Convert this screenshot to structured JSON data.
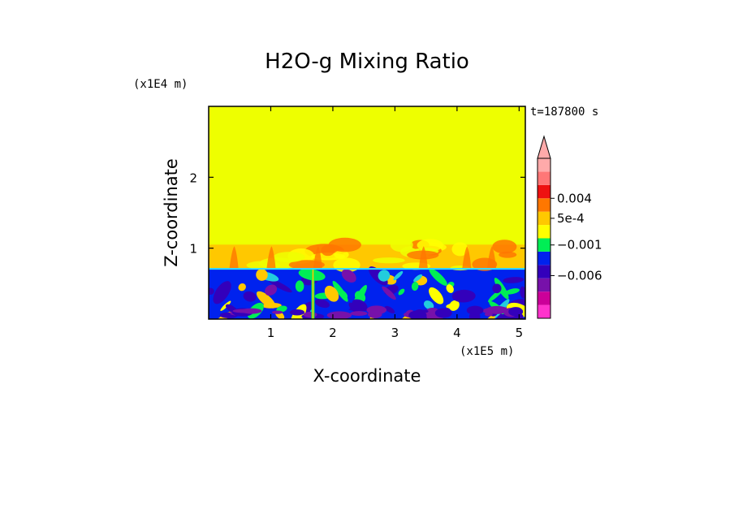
{
  "chart_data": {
    "type": "heatmap",
    "title": "H2O-g Mixing Ratio",
    "xlabel": "X-coordinate",
    "ylabel": "Z-coordinate",
    "x_unit": "(x1E5 m)",
    "y_unit": "(x1E4 m)",
    "time_label": "t=187800 s",
    "xlim": [
      0,
      5.1
    ],
    "ylim": [
      0,
      3.0
    ],
    "x_ticks": [
      1,
      2,
      3,
      4,
      5
    ],
    "x_tick_labels": [
      "1",
      "2",
      "3",
      "4",
      "5"
    ],
    "y_ticks": [
      1,
      2
    ],
    "y_tick_labels": [
      "1",
      "2"
    ],
    "regions": [
      {
        "name": "upper-layer",
        "z_range": [
          1.05,
          3.0
        ],
        "level": "above 5e-4",
        "color": "#eeff00"
      },
      {
        "name": "transition-layer",
        "z_range": [
          0.72,
          1.05
        ],
        "level": "0.001-0.004",
        "color": "#ffc800"
      },
      {
        "name": "lower-layer",
        "z_range": [
          0.0,
          0.72
        ],
        "level": "-0.006 to -0.001",
        "color": "#0022ee"
      }
    ],
    "colorbar": {
      "colors": [
        "#ff33cc",
        "#cc0099",
        "#7711aa",
        "#3300bb",
        "#0022ee",
        "#00ee55",
        "#ffff00",
        "#ffc800",
        "#ff7700",
        "#ee1111",
        "#ff7777",
        "#ffaaaa"
      ],
      "labels": [
        {
          "text": "0.004",
          "value": 0.004
        },
        {
          "text": "5e-4",
          "value": 0.0005
        },
        {
          "text": "−0.001",
          "value": -0.001
        },
        {
          "text": "−0.006",
          "value": -0.006
        }
      ],
      "extend": "max"
    }
  }
}
